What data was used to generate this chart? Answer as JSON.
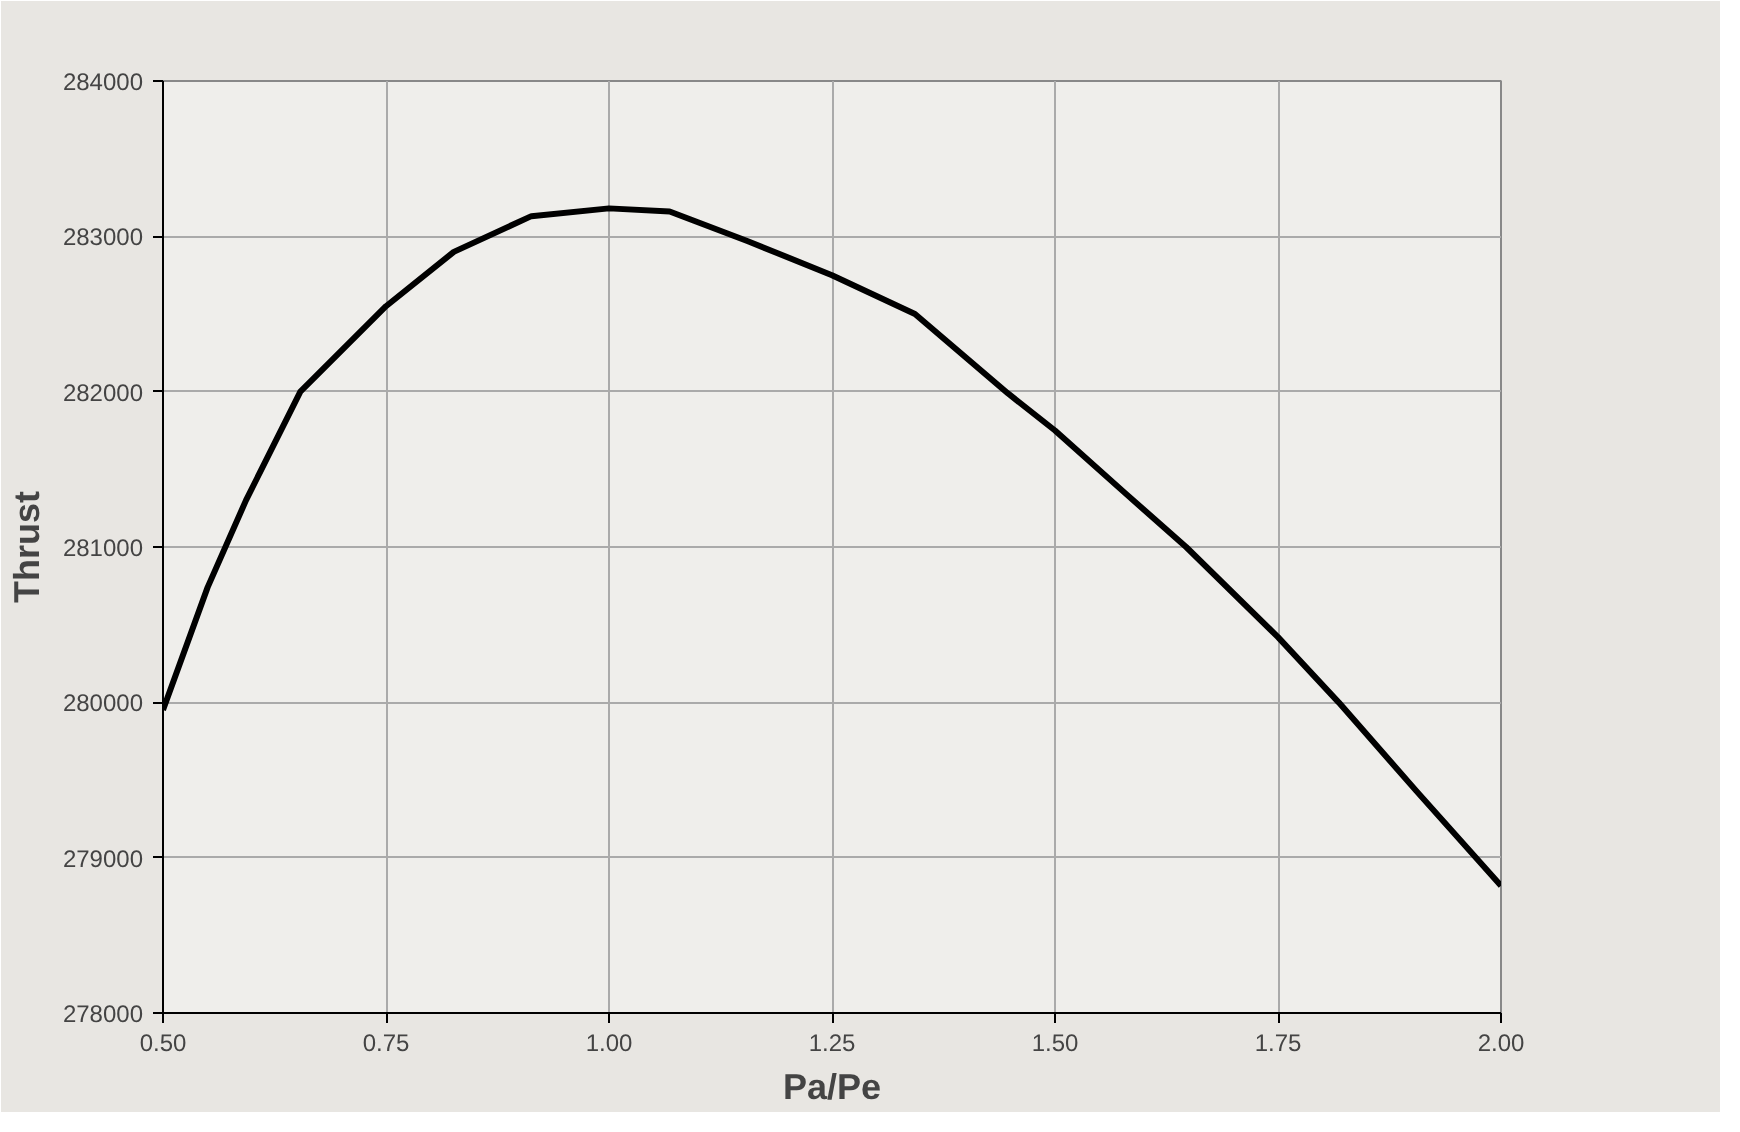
{
  "chart_data": {
    "type": "line",
    "xlabel": "Pa/Pe",
    "ylabel": "Thrust",
    "x": [
      0.5,
      0.55,
      0.593,
      0.654,
      0.75,
      0.826,
      0.913,
      1.0,
      1.068,
      1.155,
      1.25,
      1.343,
      1.447,
      1.5,
      1.578,
      1.647,
      1.75,
      1.818,
      1.905,
      2.0
    ],
    "series": [
      {
        "color": "#000000",
        "values": [
          279950,
          280740,
          281300,
          282000,
          282550,
          282900,
          283130,
          283180,
          283160,
          282970,
          282750,
          282500,
          281990,
          281750,
          281350,
          281000,
          280420,
          280000,
          279430,
          278820
        ]
      }
    ],
    "xlim": [
      0.5,
      2.0
    ],
    "ylim": [
      278000,
      284000
    ],
    "xticks": [
      {
        "value": 0.5,
        "label": "0.50"
      },
      {
        "value": 0.75,
        "label": "0.75"
      },
      {
        "value": 1.0,
        "label": "1.00"
      },
      {
        "value": 1.25,
        "label": "1.25"
      },
      {
        "value": 1.5,
        "label": "1.50"
      },
      {
        "value": 1.75,
        "label": "1.75"
      },
      {
        "value": 2.0,
        "label": "2.00"
      }
    ],
    "yticks": [
      278000,
      279000,
      280000,
      281000,
      282000,
      283000,
      284000
    ],
    "grid": true,
    "marker": "none",
    "line_style": "solid"
  }
}
